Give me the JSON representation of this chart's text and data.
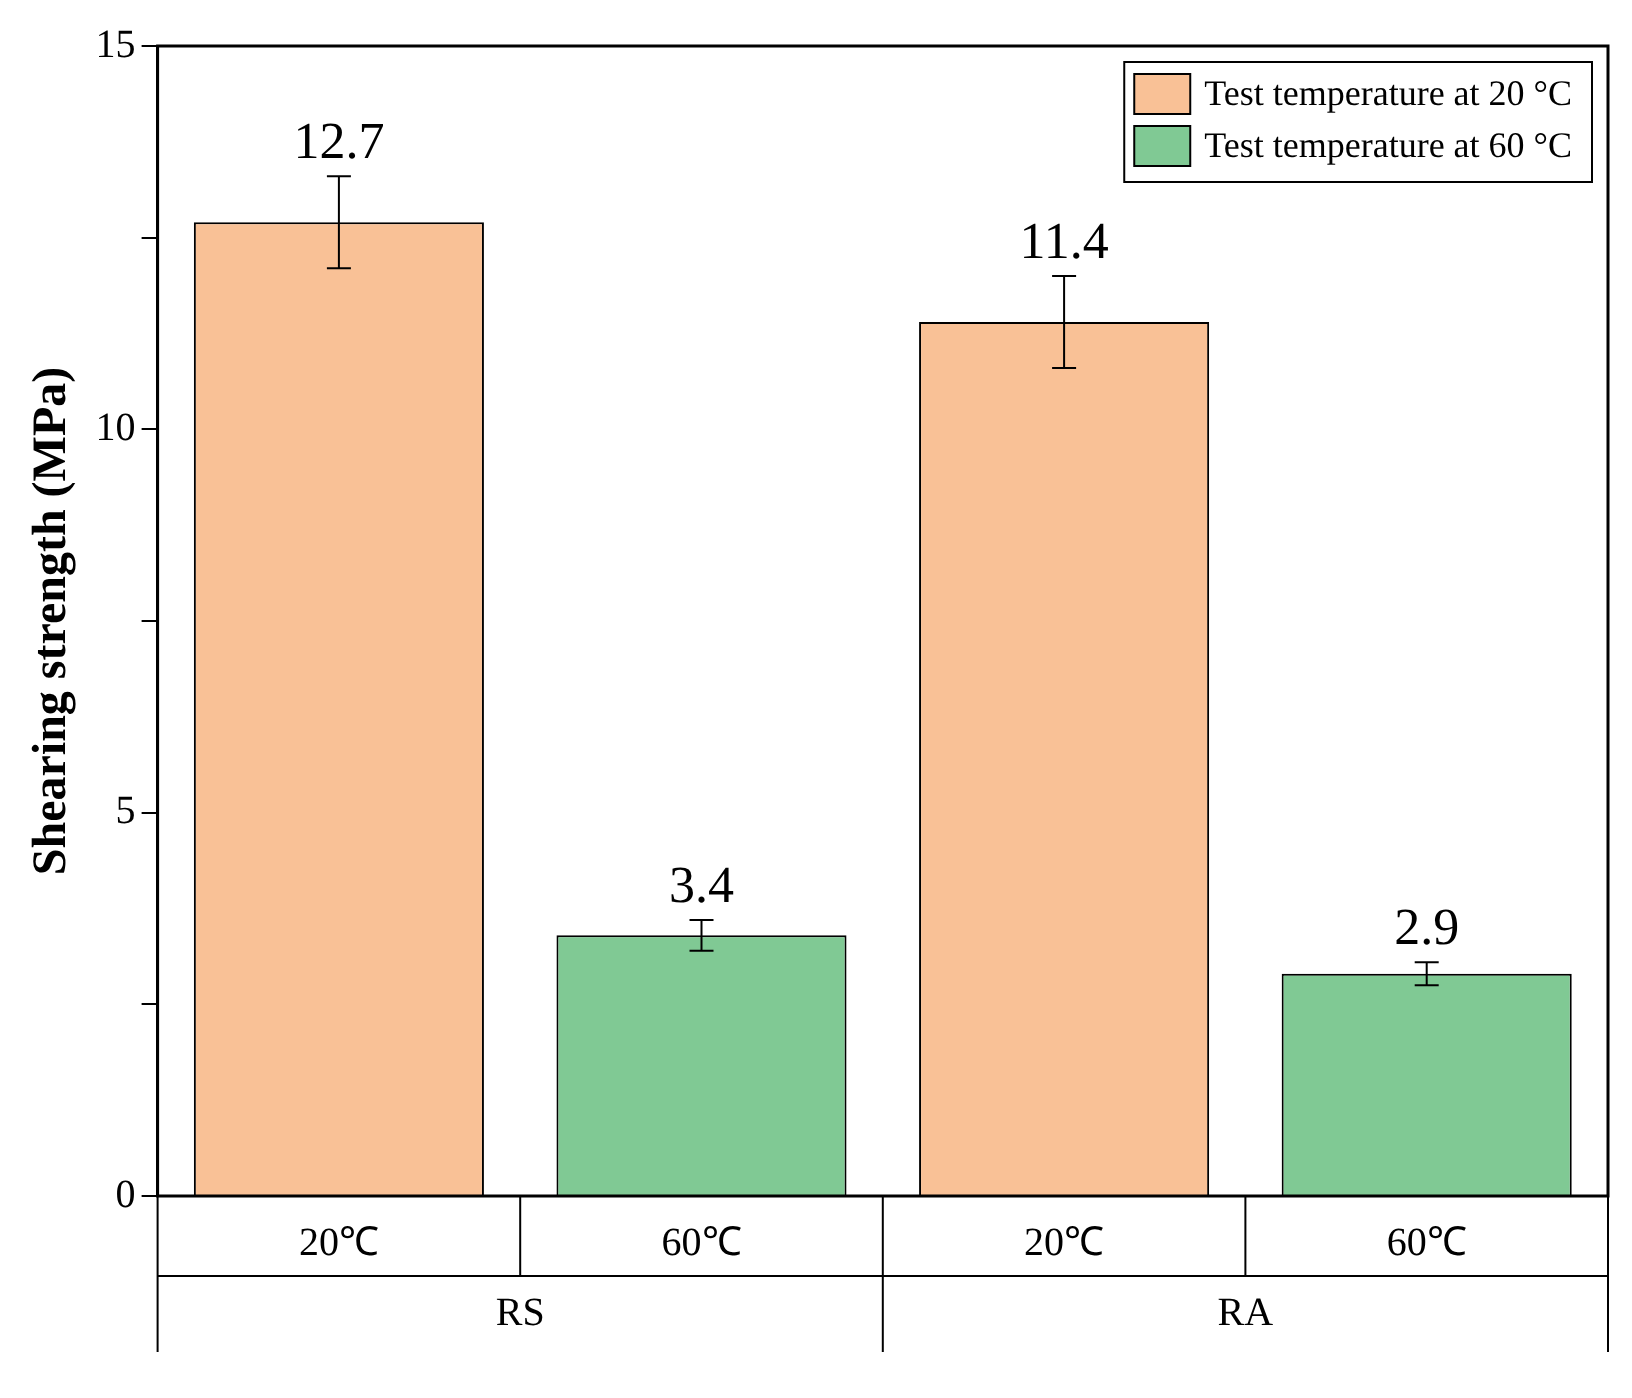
{
  "chart_data": {
    "type": "bar",
    "ylabel": "Shearing strength (MPa)",
    "categories": [
      "20℃",
      "60℃",
      "20℃",
      "60℃"
    ],
    "annotations": [
      "RS",
      "RA"
    ],
    "series": [
      {
        "name": "Test temperature at 20 °C",
        "color": "#f9c196",
        "values": [
          12.7,
          null,
          11.4,
          null
        ],
        "errors": [
          0.6,
          null,
          0.6,
          null
        ]
      },
      {
        "name": "Test temperature at 60 °C",
        "color": "#80c994",
        "values": [
          null,
          3.4,
          null,
          2.9
        ],
        "errors": [
          null,
          0.2,
          null,
          0.15
        ]
      }
    ],
    "ylim": [
      0,
      15
    ],
    "yticks": [
      0,
      {
        "value": 2.5,
        "label": null
      },
      5,
      {
        "value": 7.5,
        "label": null
      },
      10,
      {
        "value": 12.5,
        "label": null
      },
      15
    ],
    "data_labels": true,
    "legend": "top right",
    "grid": false
  }
}
